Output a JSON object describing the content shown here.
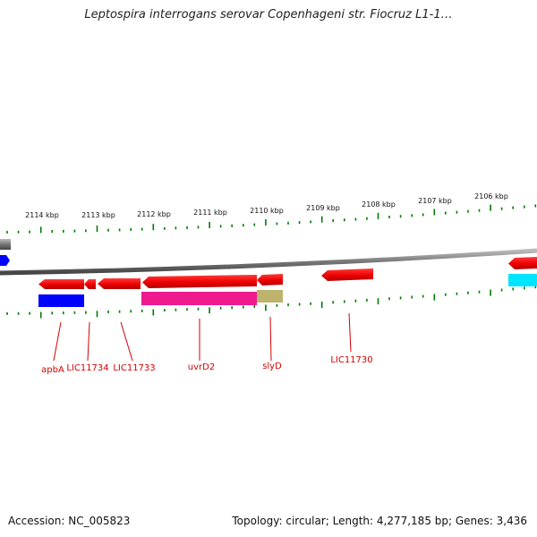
{
  "title": "Leptospira interrogans serovar Copenhageni str. Fiocruz L1-1…",
  "footer": {
    "accession": "Accession: NC_005823",
    "summary": "Topology: circular; Length: 4,277,185 bp; Genes: 3,436"
  },
  "ruler_labels": [
    "2114 kbp",
    "2113 kbp",
    "2112 kbp",
    "2111 kbp",
    "2110 kbp",
    "2109 kbp",
    "2108 kbp",
    "2107 kbp",
    "2106 kbp"
  ],
  "gene_labels": [
    "apbA",
    "LIC11734",
    "LIC11733",
    "uvrD2",
    "slyD",
    "LIC11730"
  ],
  "colors": {
    "gene_forward": "#ff0000",
    "tick": "#007a00",
    "backbone": "#808080",
    "label": "#d40000",
    "blue_feature": "#0000ff",
    "magenta_feature": "#ee1a8e",
    "olive_feature": "#bdb36c",
    "cyan_feature": "#00e5ff"
  }
}
